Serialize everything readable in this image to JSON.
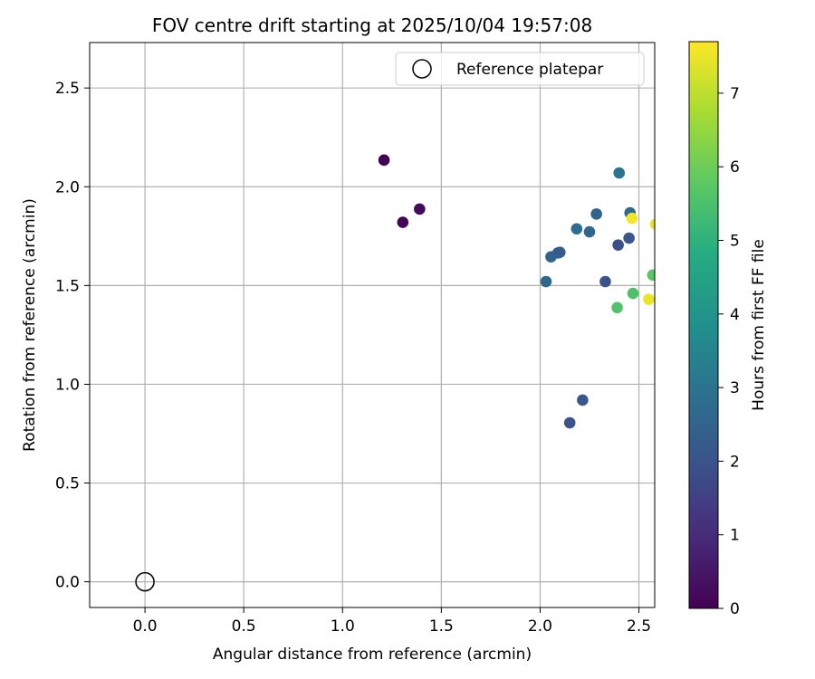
{
  "chart_data": {
    "type": "scatter",
    "title": "FOV centre drift starting at 2025/10/04 19:57:08",
    "xlabel": "Angular distance from reference (arcmin)",
    "ylabel": "Rotation from reference (arcmin)",
    "xlim": [
      -0.28,
      2.58
    ],
    "ylim": [
      -0.13,
      2.73
    ],
    "xticks": [
      0.0,
      0.5,
      1.0,
      1.5,
      2.0,
      2.5
    ],
    "xtick_labels": [
      "0.0",
      "0.5",
      "1.0",
      "1.5",
      "2.0",
      "2.5"
    ],
    "yticks": [
      0.0,
      0.5,
      1.0,
      1.5,
      2.0,
      2.5
    ],
    "ytick_labels": [
      "0.0",
      "0.5",
      "1.0",
      "1.5",
      "2.0",
      "2.5"
    ],
    "grid": true,
    "legend": {
      "placement": "top-right",
      "entries": [
        "Reference platepar"
      ]
    },
    "colorbar": {
      "label": "Hours from first FF file",
      "colormap": "viridis",
      "range": [
        0,
        7.7
      ],
      "ticks": [
        0,
        1,
        2,
        3,
        4,
        5,
        6,
        7
      ],
      "tick_labels": [
        "0",
        "1",
        "2",
        "3",
        "4",
        "5",
        "6",
        "7"
      ]
    },
    "reference_point": {
      "x": 0.0,
      "y": 0.0
    },
    "points": [
      {
        "x": 1.21,
        "y": 2.135,
        "c": 0.0
      },
      {
        "x": 1.305,
        "y": 1.82,
        "c": 0.1
      },
      {
        "x": 1.39,
        "y": 1.887,
        "c": 0.2
      },
      {
        "x": 2.03,
        "y": 1.52,
        "c": 2.6
      },
      {
        "x": 2.055,
        "y": 1.645,
        "c": 2.5
      },
      {
        "x": 2.09,
        "y": 1.665,
        "c": 2.4
      },
      {
        "x": 2.1,
        "y": 1.668,
        "c": 2.3
      },
      {
        "x": 2.15,
        "y": 0.805,
        "c": 2.0
      },
      {
        "x": 2.185,
        "y": 1.787,
        "c": 2.8
      },
      {
        "x": 2.215,
        "y": 0.92,
        "c": 2.1
      },
      {
        "x": 2.25,
        "y": 1.772,
        "c": 2.6
      },
      {
        "x": 2.285,
        "y": 1.862,
        "c": 2.5
      },
      {
        "x": 2.33,
        "y": 1.52,
        "c": 2.0
      },
      {
        "x": 2.395,
        "y": 1.705,
        "c": 1.9
      },
      {
        "x": 2.39,
        "y": 1.388,
        "c": 5.6
      },
      {
        "x": 2.4,
        "y": 2.07,
        "c": 3.0
      },
      {
        "x": 2.45,
        "y": 1.74,
        "c": 2.1
      },
      {
        "x": 2.455,
        "y": 1.868,
        "c": 2.7
      },
      {
        "x": 2.465,
        "y": 1.84,
        "c": 7.6
      },
      {
        "x": 2.47,
        "y": 1.46,
        "c": 5.5
      },
      {
        "x": 2.55,
        "y": 1.43,
        "c": 7.5
      },
      {
        "x": 2.57,
        "y": 1.553,
        "c": 5.7
      },
      {
        "x": 2.585,
        "y": 1.81,
        "c": 7.4
      }
    ]
  }
}
